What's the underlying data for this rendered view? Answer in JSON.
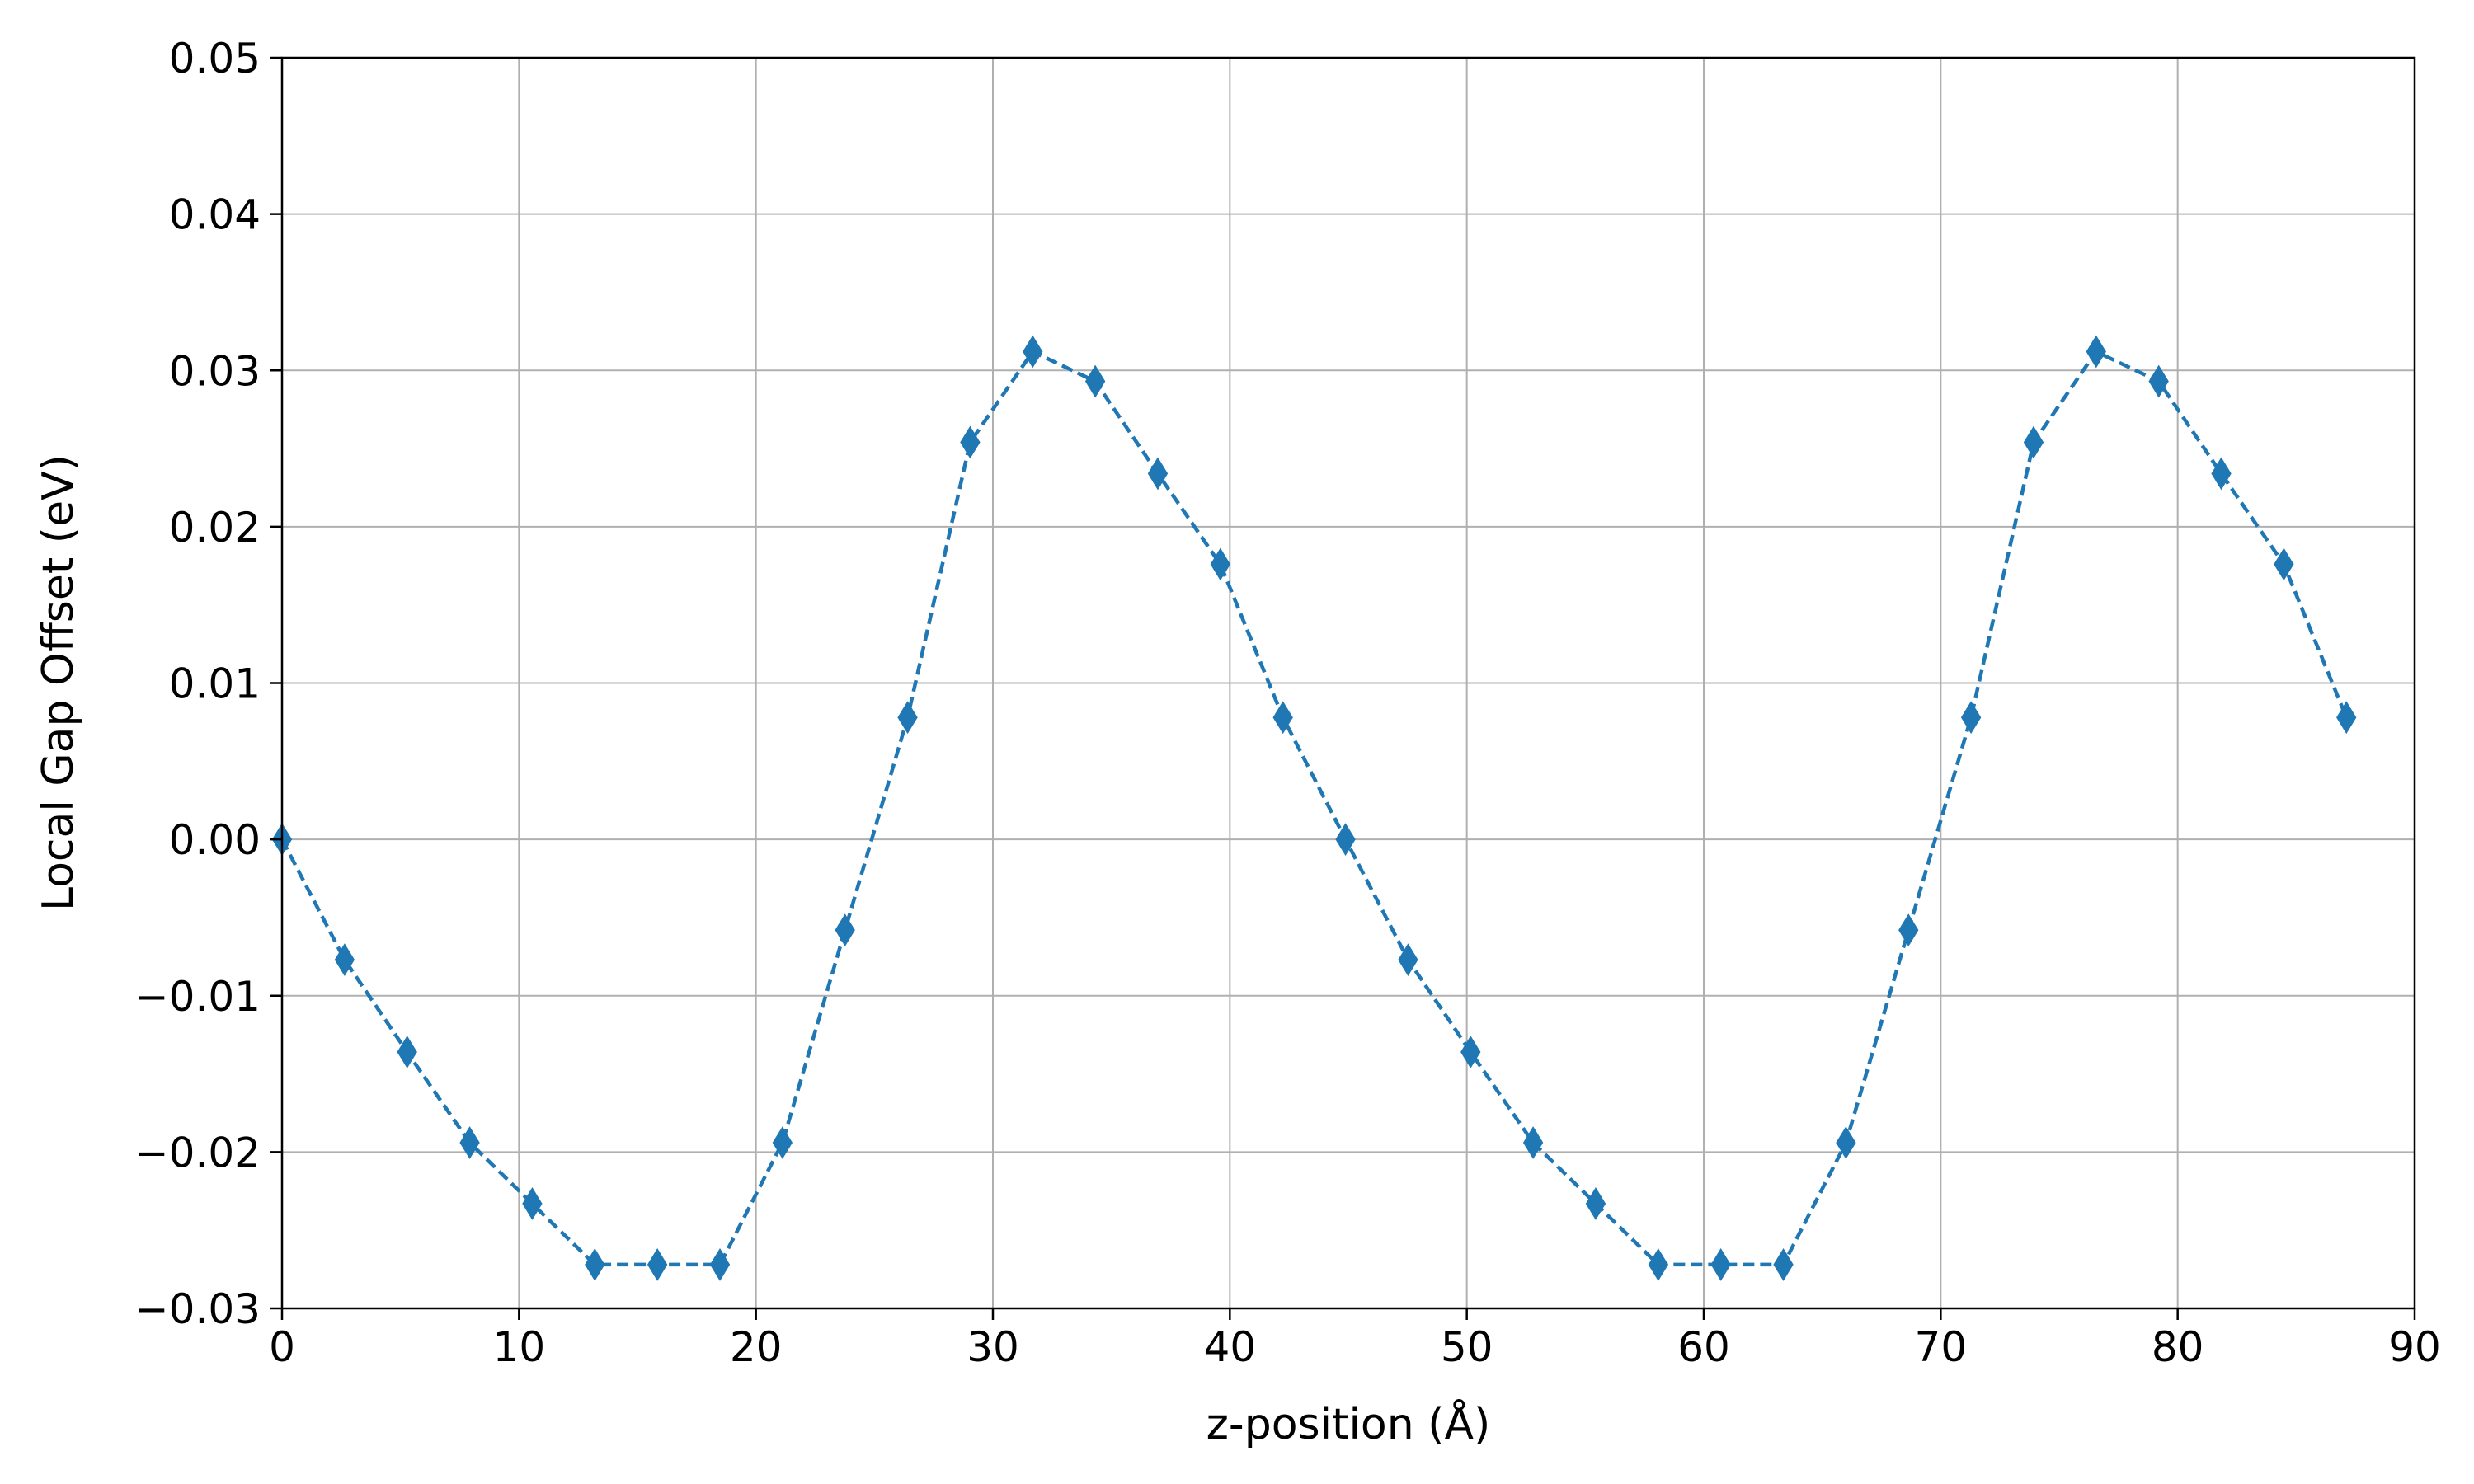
{
  "chart_data": {
    "type": "line",
    "title": "",
    "xlabel": "z-position (Å)",
    "ylabel": "Local Gap Offset (eV)",
    "xlim": [
      0,
      90
    ],
    "ylim": [
      -0.03,
      0.05
    ],
    "xticks": [
      0,
      10,
      20,
      30,
      40,
      50,
      60,
      70,
      80,
      90
    ],
    "xtick_labels": [
      "0",
      "10",
      "20",
      "30",
      "40",
      "50",
      "60",
      "70",
      "80",
      "90"
    ],
    "yticks": [
      -0.03,
      -0.02,
      -0.01,
      0.0,
      0.01,
      0.02,
      0.03,
      0.04,
      0.05
    ],
    "ytick_labels": [
      "−0.03",
      "−0.02",
      "−0.01",
      "0.00",
      "0.01",
      "0.02",
      "0.03",
      "0.04",
      "0.05"
    ],
    "grid": true,
    "legend": "none",
    "series": [
      {
        "line_style": "dashed",
        "marker": "thin-diamond",
        "color": "#1f77b4",
        "x": [
          0.0,
          2.64,
          5.28,
          7.92,
          10.56,
          13.2,
          15.84,
          18.48,
          21.12,
          23.76,
          26.4,
          29.04,
          31.68,
          34.32,
          36.96,
          39.6,
          42.24,
          44.88,
          47.52,
          50.16,
          52.8,
          55.44,
          58.08,
          60.72,
          63.36,
          66.0,
          68.64,
          71.28,
          73.92,
          76.56,
          79.2,
          81.84,
          84.48,
          87.12
        ],
        "y": [
          0.0,
          -0.0077,
          -0.0136,
          -0.0194,
          -0.0233,
          -0.0272,
          -0.0272,
          -0.0272,
          -0.0194,
          -0.0058,
          0.0078,
          0.0254,
          0.0312,
          0.0293,
          0.0234,
          0.0176,
          0.0078,
          0.0,
          -0.0077,
          -0.0136,
          -0.0194,
          -0.0233,
          -0.0272,
          -0.0272,
          -0.0272,
          -0.0194,
          -0.0058,
          0.0078,
          0.0254,
          0.0312,
          0.0293,
          0.0234,
          0.0176,
          0.0078
        ]
      }
    ]
  }
}
